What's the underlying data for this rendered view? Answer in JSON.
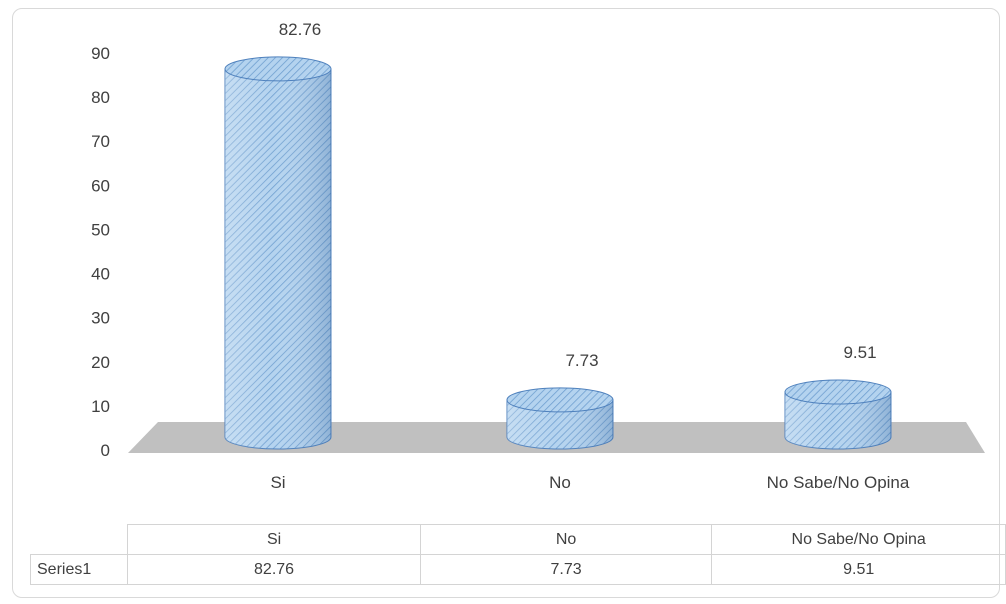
{
  "chart_data": {
    "type": "bar",
    "style": "3d-cylinder",
    "categories": [
      "Si",
      "No",
      "No Sabe/No Opina"
    ],
    "series": [
      {
        "name": "Series1",
        "values": [
          82.76,
          7.73,
          9.51
        ]
      }
    ],
    "y_ticks": [
      "0",
      "10",
      "20",
      "30",
      "40",
      "50",
      "60",
      "70",
      "80",
      "90"
    ],
    "ylim": [
      0,
      90
    ],
    "data_labels": [
      "82.76",
      "7.73",
      "9.51"
    ],
    "grid": false,
    "legend": "none",
    "data_table": {
      "headers": [
        "Si",
        "No",
        "No Sabe/No Opina"
      ],
      "rows": [
        {
          "label": "Series1",
          "cells": [
            "82.76",
            "7.73",
            "9.51"
          ]
        }
      ]
    },
    "colors": {
      "bar_fill": "#b4d3ef",
      "bar_stripe": "#6f9fd0",
      "bar_edge": "#4f81bd",
      "floor": "#c0c0c0"
    }
  }
}
